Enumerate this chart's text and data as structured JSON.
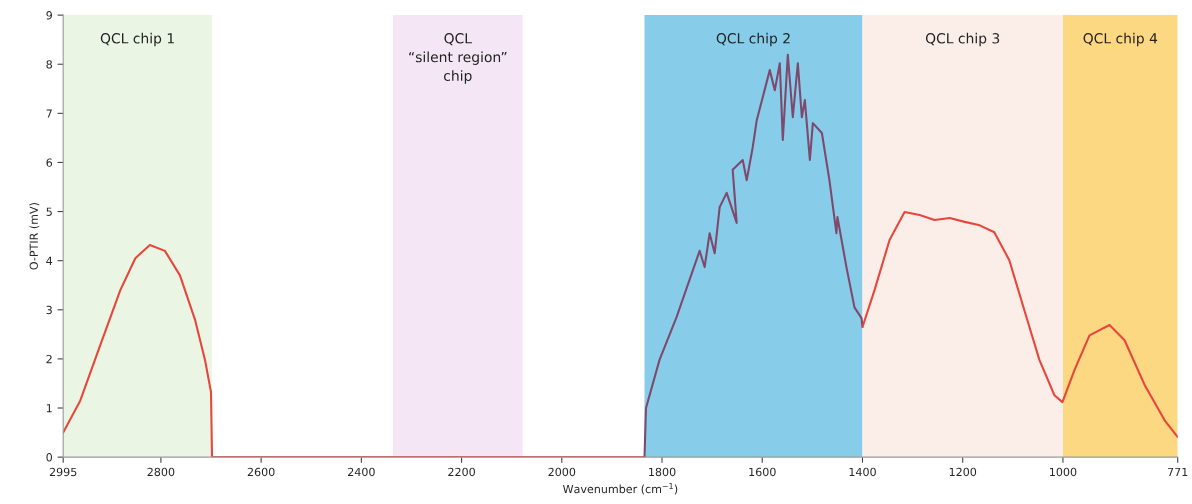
{
  "chart_data": {
    "type": "line",
    "xlabel": "Wavenumber (cm$^{−1}$)",
    "ylabel": "O-PTIR (mV)",
    "xlim": [
      2995,
      771
    ],
    "xticks": [
      2995,
      2800,
      2600,
      2400,
      2200,
      2000,
      1800,
      1600,
      1400,
      1200,
      1000,
      771
    ],
    "ylim": [
      0,
      9
    ],
    "yticks": [
      0,
      1,
      2,
      3,
      4,
      5,
      6,
      7,
      8,
      9
    ],
    "grid": false,
    "marker": "none",
    "line_style": "solid",
    "bands": [
      {
        "axis": "x",
        "from": 2995,
        "to": 2698,
        "label": "QCL chip 1",
        "color": "#eaf5e4"
      },
      {
        "axis": "x",
        "from": 2337,
        "to": 2078,
        "label": "QCL\n“silent region”\nchip",
        "color": "#f5e6f5"
      },
      {
        "axis": "x",
        "from": 1835,
        "to": 1400,
        "label": "QCL chip 2",
        "color": "#87cce8"
      },
      {
        "axis": "x",
        "from": 1400,
        "to": 1000,
        "label": "QCL chip 3",
        "color": "#fbeee8"
      },
      {
        "axis": "x",
        "from": 1000,
        "to": 771,
        "label": "QCL chip 4",
        "color": "#fdd882"
      }
    ],
    "series": [
      {
        "color": "#e8463a",
        "x": [
          2995,
          2961,
          2921,
          2881,
          2851,
          2822,
          2792,
          2762,
          2732,
          2712,
          2700,
          2698,
          1835
        ],
        "values": [
          0.5,
          1.15,
          2.28,
          3.4,
          4.05,
          4.32,
          4.2,
          3.7,
          2.8,
          1.98,
          1.32,
          0,
          0
        ]
      },
      {
        "color": "#7d4a6e",
        "x": [
          1835,
          1832,
          1805,
          1771,
          1725,
          1715,
          1705,
          1695,
          1685,
          1671,
          1651,
          1659,
          1639,
          1631,
          1619,
          1611,
          1585,
          1575,
          1565,
          1559,
          1549,
          1539,
          1529,
          1521,
          1515,
          1505,
          1499,
          1481,
          1466,
          1452,
          1450,
          1432,
          1416,
          1402,
          1400
        ],
        "values": [
          0,
          1.0,
          1.98,
          2.85,
          4.2,
          3.87,
          4.56,
          4.15,
          5.09,
          5.38,
          4.77,
          5.85,
          6.05,
          5.64,
          6.31,
          6.86,
          7.88,
          7.47,
          8.02,
          6.46,
          8.19,
          6.92,
          8.02,
          6.92,
          7.27,
          6.05,
          6.8,
          6.6,
          5.64,
          4.56,
          4.89,
          3.87,
          3.05,
          2.83,
          2.65
        ]
      },
      {
        "color": "#e8463a",
        "x": [
          1400,
          1376,
          1346,
          1316,
          1286,
          1256,
          1226,
          1196,
          1166,
          1137,
          1107,
          1077,
          1047,
          1017,
          1001,
          977,
          947,
          907,
          877,
          837,
          797,
          771
        ],
        "values": [
          2.65,
          3.4,
          4.42,
          4.99,
          4.93,
          4.83,
          4.87,
          4.79,
          4.72,
          4.58,
          4.01,
          2.99,
          1.98,
          1.26,
          1.12,
          1.77,
          2.48,
          2.69,
          2.38,
          1.47,
          0.75,
          0.41
        ]
      }
    ]
  }
}
